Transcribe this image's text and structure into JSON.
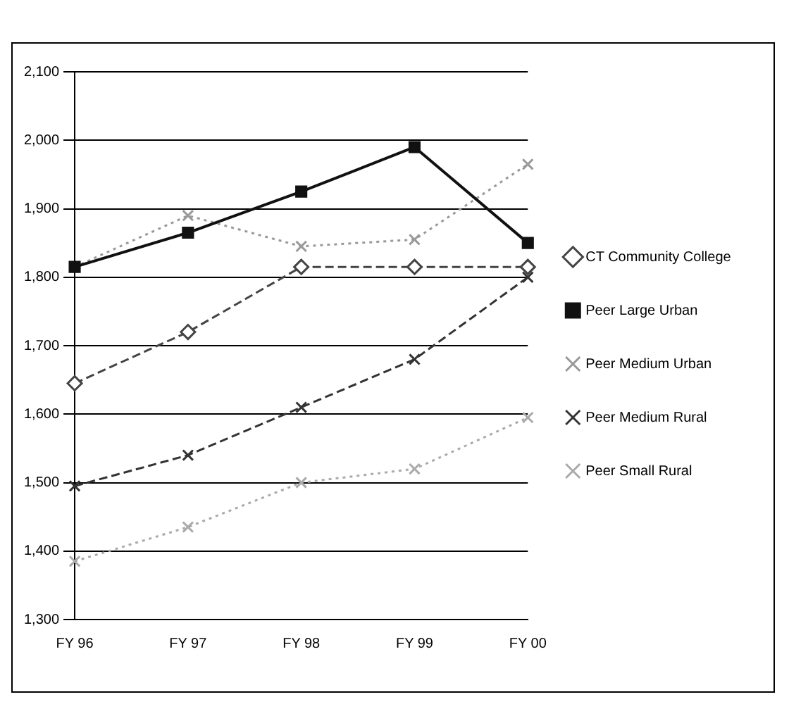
{
  "chart_data": {
    "type": "line",
    "categories": [
      "FY 96",
      "FY 97",
      "FY 98",
      "FY 99",
      "FY 00"
    ],
    "series": [
      {
        "name": "CT Community College",
        "color": "#444444",
        "marker": "diamond",
        "line_style": "dashed",
        "values": [
          1645,
          1720,
          1815,
          1815,
          1815
        ]
      },
      {
        "name": "Peer Large Urban",
        "color": "#111111",
        "marker": "square",
        "line_style": "solid",
        "values": [
          1815,
          1865,
          1925,
          1990,
          1850
        ]
      },
      {
        "name": "Peer Medium Urban",
        "color": "#999999",
        "marker": "cross",
        "line_style": "dotted",
        "values": [
          1815,
          1890,
          1845,
          1855,
          1965
        ]
      },
      {
        "name": "Peer Medium Rural",
        "color": "#333333",
        "marker": "cross",
        "line_style": "dashed",
        "values": [
          1495,
          1540,
          1610,
          1680,
          1800
        ]
      },
      {
        "name": "Peer Small Rural",
        "color": "#aaaaaa",
        "marker": "cross",
        "line_style": "dotted",
        "values": [
          1385,
          1435,
          1500,
          1520,
          1595
        ]
      }
    ],
    "ylim": [
      1300,
      2100
    ],
    "yticks": [
      {
        "value": 1300,
        "label": "1,300"
      },
      {
        "value": 1400,
        "label": "1,400"
      },
      {
        "value": 1500,
        "label": "1,500"
      },
      {
        "value": 1600,
        "label": "1,600"
      },
      {
        "value": 1700,
        "label": "1,700"
      },
      {
        "value": 1800,
        "label": "1,800"
      },
      {
        "value": 1900,
        "label": "1,900"
      },
      {
        "value": 2000,
        "label": "2,000"
      },
      {
        "value": 2100,
        "label": "2,100"
      }
    ],
    "grid": "y",
    "legend": "right"
  }
}
